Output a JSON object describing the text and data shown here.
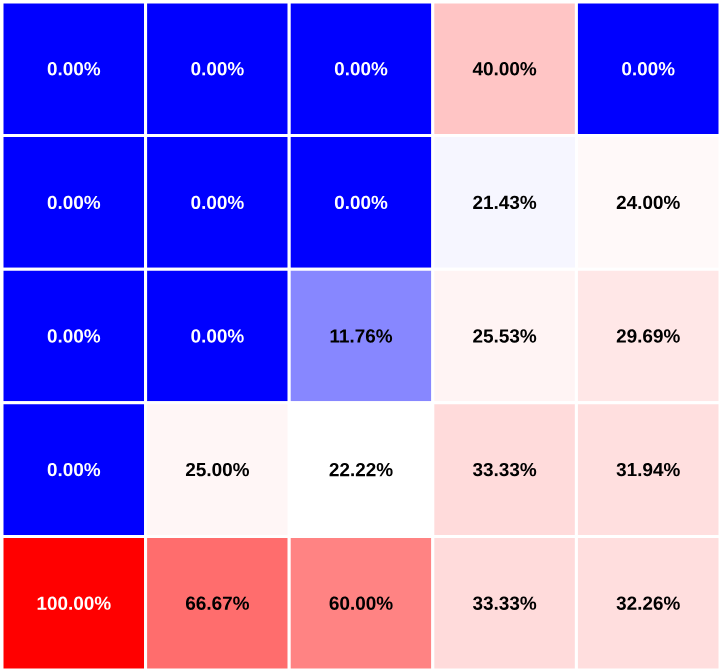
{
  "chart_data": {
    "type": "heatmap",
    "categories": [
      null,
      null,
      null,
      null,
      null
    ],
    "y_categories": [
      null,
      null,
      null,
      null,
      null
    ],
    "cells": [
      [
        0,
        0,
        0,
        40,
        0
      ],
      [
        0,
        0,
        0,
        21.43,
        24
      ],
      [
        0,
        0,
        11.76,
        25.53,
        29.69
      ],
      [
        0,
        25,
        22.22,
        33.33,
        31.94
      ],
      [
        100,
        66.67,
        60,
        33.33,
        32.26
      ]
    ],
    "cell_labels": [
      [
        "0.00%",
        "0.00%",
        "0.00%",
        "40.00%",
        "0.00%"
      ],
      [
        "0.00%",
        "0.00%",
        "0.00%",
        "21.43%",
        "24.00%"
      ],
      [
        "0.00%",
        "0.00%",
        "11.76%",
        "25.53%",
        "29.69%"
      ],
      [
        "0.00%",
        "25.00%",
        "22.22%",
        "33.33%",
        "31.94%"
      ],
      [
        "100.00%",
        "66.67%",
        "60.00%",
        "33.33%",
        "32.26%"
      ]
    ]
  }
}
